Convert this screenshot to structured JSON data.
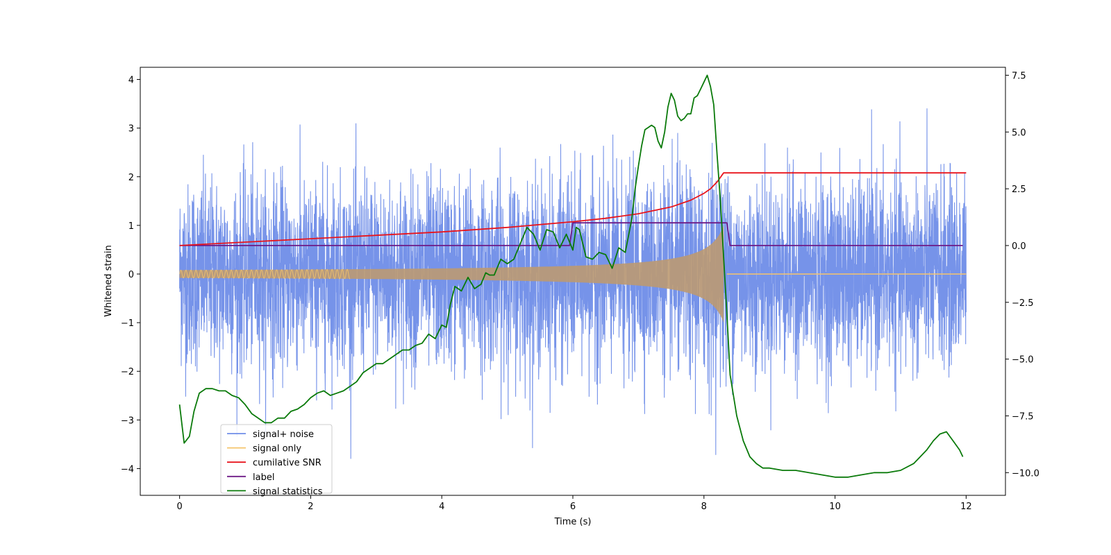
{
  "chart_data": {
    "type": "line",
    "xlabel": "Time (s)",
    "ylabel": "Whitened strain",
    "ylabel_right": "",
    "xlim": [
      -0.6,
      12.6
    ],
    "ylim": [
      -4.55,
      4.25
    ],
    "ylim_right": [
      -11.0,
      7.85
    ],
    "xticks": [
      0,
      2,
      4,
      6,
      8,
      10,
      12
    ],
    "yticks": [
      4,
      3,
      2,
      1,
      0,
      -1,
      -2,
      -3,
      -4
    ],
    "yticks_right": [
      7.5,
      5.0,
      2.5,
      0.0,
      -2.5,
      -5.0,
      -7.5,
      -10.0
    ],
    "xtick_labels": [
      "0",
      "2",
      "4",
      "6",
      "8",
      "10",
      "12"
    ],
    "ytick_labels": [
      "4",
      "3",
      "2",
      "1",
      "0",
      "−1",
      "−2",
      "−3",
      "−4"
    ],
    "ytick_labels_right": [
      "7.5",
      "5.0",
      "2.5",
      "0.0",
      "−2.5",
      "−5.0",
      "−7.5",
      "−10.0"
    ],
    "legend_location": "lower-left",
    "colors": {
      "noise": "#6f8de8",
      "signal": "#f5c46a",
      "signal_fill": "#bc9a72",
      "snr": "#e8141c",
      "label": "#6e1a86",
      "stats": "#0a7a0a"
    },
    "series": [
      {
        "name": "signal+ noise",
        "axis": "left",
        "description": "white noise with std 1.0 plus the chirp signal, sampled 0 to 12 s",
        "noise_std": 1.0,
        "x_range": [
          0,
          12
        ]
      },
      {
        "name": "signal only",
        "axis": "left",
        "description": "chirp with amplitude 0.08 at t=0 growing to 1.0 at merger t=8.3 s, then 0",
        "amplitude_start": 0.08,
        "amplitude_peak": 1.0,
        "merger_time": 8.3
      },
      {
        "name": "cumilative SNR",
        "axis": "right",
        "x": [
          0,
          1,
          2,
          3,
          4,
          5,
          6,
          6.5,
          7,
          7.5,
          7.8,
          8.0,
          8.1,
          8.2,
          8.3,
          8.35,
          12
        ],
        "y": [
          0.0,
          0.15,
          0.3,
          0.45,
          0.6,
          0.8,
          1.05,
          1.2,
          1.4,
          1.7,
          2.0,
          2.3,
          2.5,
          2.8,
          3.2,
          3.2,
          3.2
        ]
      },
      {
        "name": "label",
        "axis": "right",
        "x": [
          0,
          5.95,
          6.0,
          8.35,
          8.4,
          11.95
        ],
        "y": [
          0,
          0,
          1.0,
          1.0,
          0,
          0
        ]
      },
      {
        "name": "signal statistics",
        "axis": "right",
        "x": [
          0.0,
          0.07,
          0.15,
          0.22,
          0.3,
          0.4,
          0.5,
          0.6,
          0.7,
          0.8,
          0.9,
          1.0,
          1.1,
          1.2,
          1.3,
          1.4,
          1.5,
          1.6,
          1.7,
          1.8,
          1.9,
          2.0,
          2.1,
          2.2,
          2.3,
          2.4,
          2.5,
          2.6,
          2.7,
          2.8,
          2.9,
          3.0,
          3.1,
          3.2,
          3.3,
          3.4,
          3.5,
          3.6,
          3.7,
          3.8,
          3.9,
          4.0,
          4.07,
          4.13,
          4.2,
          4.3,
          4.4,
          4.5,
          4.6,
          4.67,
          4.73,
          4.8,
          4.9,
          5.0,
          5.1,
          5.2,
          5.3,
          5.4,
          5.5,
          5.6,
          5.7,
          5.8,
          5.9,
          6.0,
          6.05,
          6.1,
          6.2,
          6.3,
          6.4,
          6.5,
          6.6,
          6.7,
          6.8,
          6.9,
          6.95,
          7.0,
          7.05,
          7.1,
          7.15,
          7.2,
          7.25,
          7.3,
          7.35,
          7.4,
          7.45,
          7.5,
          7.55,
          7.6,
          7.65,
          7.7,
          7.75,
          7.8,
          7.85,
          7.9,
          7.95,
          8.0,
          8.05,
          8.1,
          8.15,
          8.2,
          8.25,
          8.3,
          8.35,
          8.4,
          8.5,
          8.6,
          8.7,
          8.8,
          8.9,
          9.0,
          9.2,
          9.4,
          9.6,
          9.8,
          10.0,
          10.2,
          10.4,
          10.6,
          10.8,
          11.0,
          11.2,
          11.3,
          11.4,
          11.5,
          11.6,
          11.7,
          11.8,
          11.9,
          11.95
        ],
        "y": [
          -7.0,
          -8.7,
          -8.4,
          -7.3,
          -6.5,
          -6.3,
          -6.3,
          -6.4,
          -6.4,
          -6.6,
          -6.7,
          -7.0,
          -7.4,
          -7.6,
          -7.8,
          -7.8,
          -7.6,
          -7.6,
          -7.3,
          -7.2,
          -7.0,
          -6.7,
          -6.5,
          -6.4,
          -6.6,
          -6.5,
          -6.4,
          -6.2,
          -6.0,
          -5.6,
          -5.4,
          -5.2,
          -5.2,
          -5.0,
          -4.8,
          -4.6,
          -4.6,
          -4.4,
          -4.3,
          -3.9,
          -4.1,
          -3.5,
          -3.6,
          -2.6,
          -1.8,
          -2.0,
          -1.4,
          -1.9,
          -1.7,
          -1.2,
          -1.3,
          -1.3,
          -0.6,
          -0.8,
          -0.6,
          0.1,
          0.8,
          0.5,
          -0.2,
          0.7,
          0.6,
          -0.1,
          0.5,
          -0.2,
          0.8,
          0.7,
          -0.5,
          -0.6,
          -0.3,
          -0.4,
          -1.0,
          -0.1,
          -0.3,
          1.2,
          2.5,
          3.5,
          4.4,
          5.1,
          5.2,
          5.3,
          5.2,
          4.6,
          4.3,
          5.0,
          6.1,
          6.7,
          6.4,
          5.7,
          5.5,
          5.6,
          5.8,
          5.8,
          6.5,
          6.6,
          6.9,
          7.2,
          7.5,
          7.0,
          6.2,
          4.0,
          2.0,
          -0.5,
          -3.0,
          -5.7,
          -7.5,
          -8.6,
          -9.3,
          -9.6,
          -9.8,
          -9.8,
          -9.9,
          -9.9,
          -10.0,
          -10.1,
          -10.2,
          -10.2,
          -10.1,
          -10.0,
          -10.0,
          -9.9,
          -9.6,
          -9.3,
          -9.0,
          -8.6,
          -8.3,
          -8.2,
          -8.6,
          -9.0,
          -9.3
        ]
      }
    ]
  }
}
